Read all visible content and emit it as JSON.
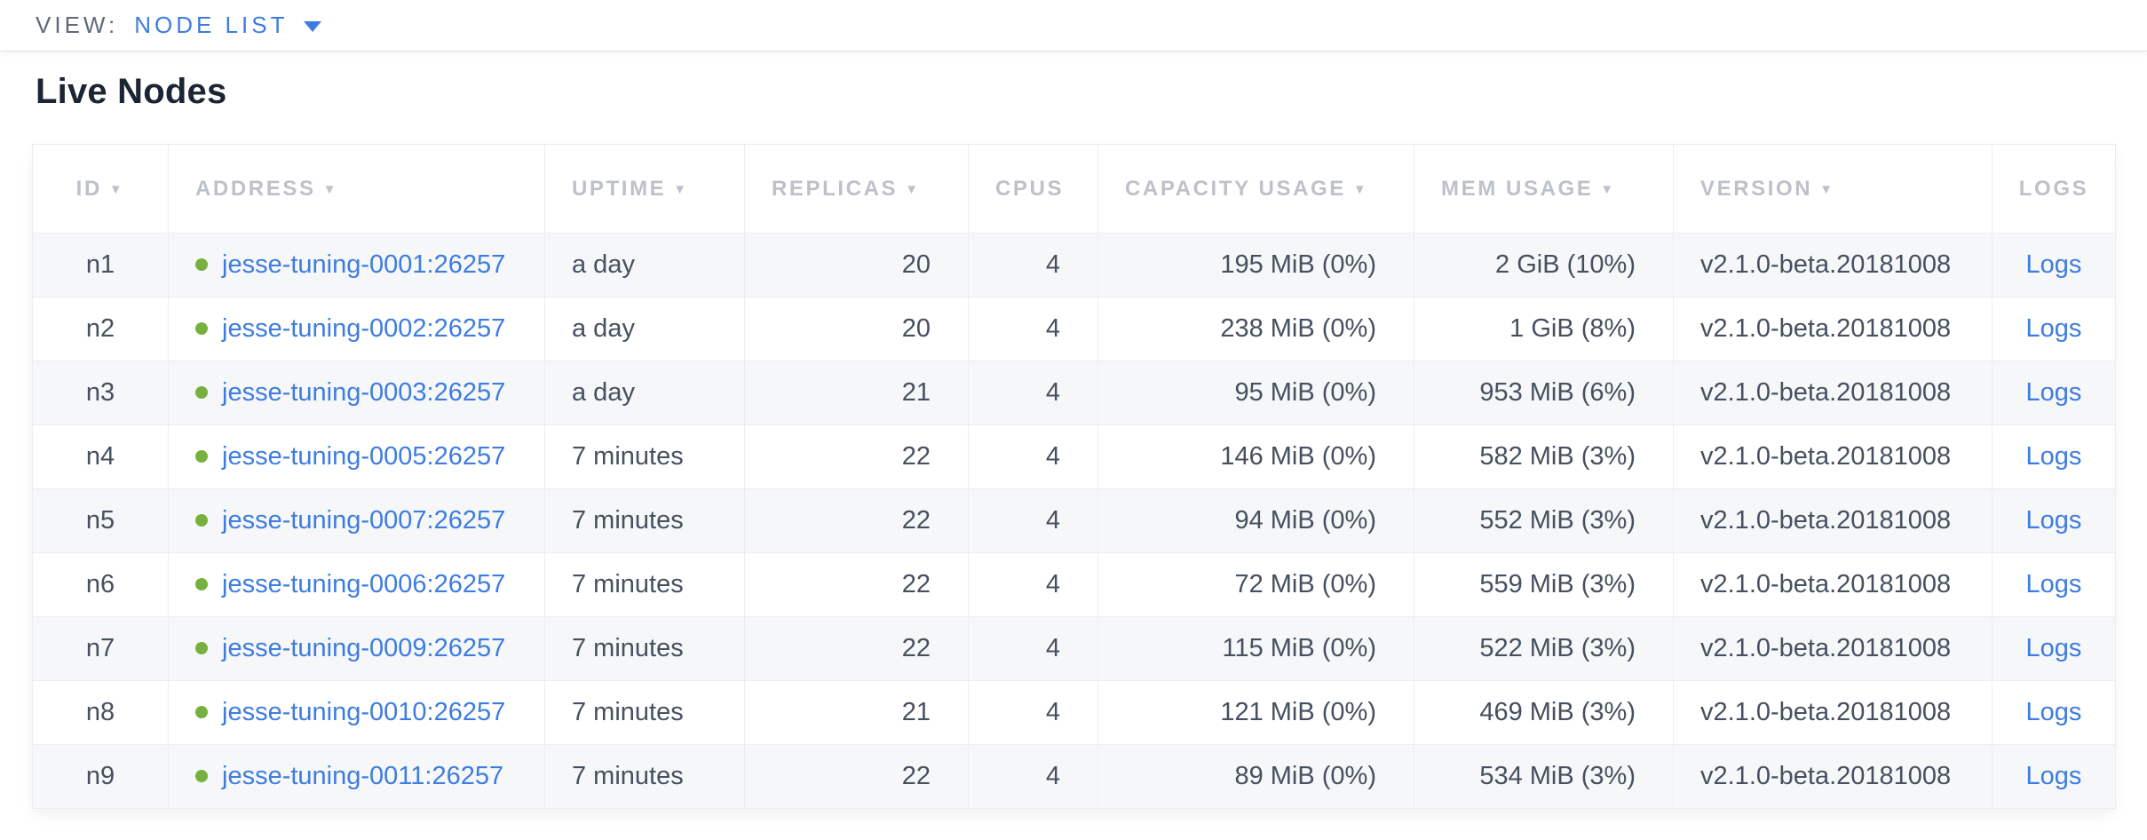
{
  "view_bar": {
    "label": "VIEW:",
    "selected": "NODE LIST"
  },
  "page": {
    "title": "Live Nodes"
  },
  "icons": {
    "sort_arrow": "▼",
    "chevron_down": "▾",
    "status_dot": "live-status-dot"
  },
  "colors": {
    "link": "#3e7ce0",
    "status_live": "#76b13f",
    "header_text": "#bdc1c9",
    "body_text": "#46505f",
    "row_stripe": "#f6f7f8",
    "border": "#ebedef",
    "title_text": "#1c2533"
  },
  "table": {
    "columns": [
      {
        "key": "id",
        "label": "ID",
        "sortable": true,
        "align": "center"
      },
      {
        "key": "address",
        "label": "ADDRESS",
        "sortable": true,
        "align": "left"
      },
      {
        "key": "uptime",
        "label": "UPTIME",
        "sortable": true,
        "align": "left"
      },
      {
        "key": "replicas",
        "label": "REPLICAS",
        "sortable": true,
        "align": "left"
      },
      {
        "key": "cpus",
        "label": "CPUS",
        "sortable": false,
        "align": "left"
      },
      {
        "key": "capacity",
        "label": "CAPACITY USAGE",
        "sortable": true,
        "align": "left"
      },
      {
        "key": "mem",
        "label": "MEM USAGE",
        "sortable": true,
        "align": "left"
      },
      {
        "key": "version",
        "label": "VERSION",
        "sortable": true,
        "align": "left"
      },
      {
        "key": "logs",
        "label": "LOGS",
        "sortable": false,
        "align": "center"
      }
    ],
    "rows": [
      {
        "id": "n1",
        "address": "jesse-tuning-0001:26257",
        "uptime": "a day",
        "replicas": "20",
        "cpus": "4",
        "capacity": "195 MiB (0%)",
        "mem": "2 GiB (10%)",
        "version": "v2.1.0-beta.20181008",
        "logs": "Logs"
      },
      {
        "id": "n2",
        "address": "jesse-tuning-0002:26257",
        "uptime": "a day",
        "replicas": "20",
        "cpus": "4",
        "capacity": "238 MiB (0%)",
        "mem": "1 GiB (8%)",
        "version": "v2.1.0-beta.20181008",
        "logs": "Logs"
      },
      {
        "id": "n3",
        "address": "jesse-tuning-0003:26257",
        "uptime": "a day",
        "replicas": "21",
        "cpus": "4",
        "capacity": "95 MiB (0%)",
        "mem": "953 MiB (6%)",
        "version": "v2.1.0-beta.20181008",
        "logs": "Logs"
      },
      {
        "id": "n4",
        "address": "jesse-tuning-0005:26257",
        "uptime": "7 minutes",
        "replicas": "22",
        "cpus": "4",
        "capacity": "146 MiB (0%)",
        "mem": "582 MiB (3%)",
        "version": "v2.1.0-beta.20181008",
        "logs": "Logs"
      },
      {
        "id": "n5",
        "address": "jesse-tuning-0007:26257",
        "uptime": "7 minutes",
        "replicas": "22",
        "cpus": "4",
        "capacity": "94 MiB (0%)",
        "mem": "552 MiB (3%)",
        "version": "v2.1.0-beta.20181008",
        "logs": "Logs"
      },
      {
        "id": "n6",
        "address": "jesse-tuning-0006:26257",
        "uptime": "7 minutes",
        "replicas": "22",
        "cpus": "4",
        "capacity": "72 MiB (0%)",
        "mem": "559 MiB (3%)",
        "version": "v2.1.0-beta.20181008",
        "logs": "Logs"
      },
      {
        "id": "n7",
        "address": "jesse-tuning-0009:26257",
        "uptime": "7 minutes",
        "replicas": "22",
        "cpus": "4",
        "capacity": "115 MiB (0%)",
        "mem": "522 MiB (3%)",
        "version": "v2.1.0-beta.20181008",
        "logs": "Logs"
      },
      {
        "id": "n8",
        "address": "jesse-tuning-0010:26257",
        "uptime": "7 minutes",
        "replicas": "21",
        "cpus": "4",
        "capacity": "121 MiB (0%)",
        "mem": "469 MiB (3%)",
        "version": "v2.1.0-beta.20181008",
        "logs": "Logs"
      },
      {
        "id": "n9",
        "address": "jesse-tuning-0011:26257",
        "uptime": "7 minutes",
        "replicas": "22",
        "cpus": "4",
        "capacity": "89 MiB (0%)",
        "mem": "534 MiB (3%)",
        "version": "v2.1.0-beta.20181008",
        "logs": "Logs"
      }
    ]
  }
}
